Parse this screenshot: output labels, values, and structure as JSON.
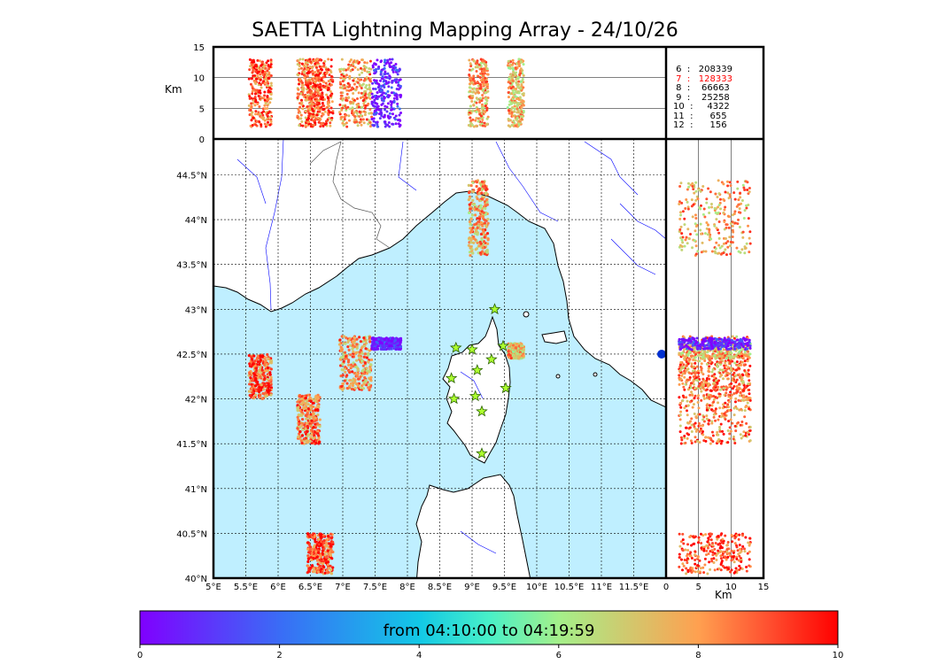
{
  "chart_data": {
    "type": "scatter",
    "title": "SAETTA Lightning Mapping Array - 24/10/26",
    "plan_view": {
      "x_ticks": [
        "5°E",
        "5.5°E",
        "6°E",
        "6.5°E",
        "7°E",
        "7.5°E",
        "8°E",
        "8.5°E",
        "9°E",
        "9.5°E",
        "10°E",
        "10.5°E",
        "11°E",
        "11.5°E"
      ],
      "y_ticks": [
        "40°N",
        "40.5°N",
        "41°N",
        "41.5°N",
        "42°N",
        "42.5°N",
        "43°N",
        "43.5°N",
        "44°N",
        "44.5°N"
      ],
      "xlim": [
        5.0,
        12.0
      ],
      "ylim": [
        40.0,
        44.9
      ],
      "grid": true,
      "stations": [
        {
          "lon": 9.35,
          "lat": 43.0
        },
        {
          "lon": 8.75,
          "lat": 42.57
        },
        {
          "lon": 9.0,
          "lat": 42.55
        },
        {
          "lon": 9.48,
          "lat": 42.59
        },
        {
          "lon": 9.3,
          "lat": 42.44
        },
        {
          "lon": 9.08,
          "lat": 42.32
        },
        {
          "lon": 8.68,
          "lat": 42.23
        },
        {
          "lon": 9.52,
          "lat": 42.12
        },
        {
          "lon": 8.72,
          "lat": 42.0
        },
        {
          "lon": 9.05,
          "lat": 42.03
        },
        {
          "lon": 9.15,
          "lat": 41.86
        },
        {
          "lon": 9.15,
          "lat": 41.39
        }
      ],
      "clusters": [
        {
          "lon": [
            8.95,
            9.25
          ],
          "lat": [
            43.6,
            44.45
          ],
          "time": 7.8
        },
        {
          "lon": [
            5.55,
            5.9
          ],
          "lat": [
            42.0,
            42.5
          ],
          "time": 8.8
        },
        {
          "lon": [
            6.95,
            7.45
          ],
          "lat": [
            42.1,
            42.7
          ],
          "time": 8.0
        },
        {
          "lon": [
            6.3,
            6.65
          ],
          "lat": [
            41.5,
            42.05
          ],
          "time": 8.5
        },
        {
          "lon": [
            6.45,
            6.85
          ],
          "lat": [
            40.05,
            40.5
          ],
          "time": 9.0
        },
        {
          "lon": [
            9.55,
            9.8
          ],
          "lat": [
            42.45,
            42.62
          ],
          "time": 7.5
        },
        {
          "lon": [
            7.45,
            7.9
          ],
          "lat": [
            42.55,
            42.68
          ],
          "time": 0.5
        }
      ]
    },
    "altitude_lon": {
      "ylabel": "Km",
      "y_ticks": [
        "0",
        "5",
        "10",
        "15"
      ],
      "ylim": [
        0,
        15
      ]
    },
    "altitude_lat": {
      "xlabel": "Km",
      "x_ticks": [
        "0",
        "5",
        "10",
        "15"
      ],
      "xlim": [
        0,
        15
      ]
    },
    "station_counts": [
      {
        "stations": "6",
        "count": "208339",
        "color": "#000000"
      },
      {
        "stations": "7",
        "count": "128333",
        "color": "#ff0000"
      },
      {
        "stations": "8",
        "count": "66663",
        "color": "#000000"
      },
      {
        "stations": "9",
        "count": "25258",
        "color": "#000000"
      },
      {
        "stations": "10",
        "count": "4322",
        "color": "#000000"
      },
      {
        "stations": "11",
        "count": "655",
        "color": "#000000"
      },
      {
        "stations": "12",
        "count": "156",
        "color": "#000000"
      }
    ],
    "colorbar": {
      "label": "from 04:10:00 to 04:19:59",
      "ticks": [
        "0",
        "2",
        "4",
        "6",
        "8",
        "10"
      ],
      "range": [
        0,
        10
      ],
      "colormap": "rainbow"
    }
  },
  "colors": {
    "sea": "#bfefff",
    "land": "#ffffff",
    "coast": "#000000",
    "rivers": "#0000ff",
    "borders": "#555555",
    "station_fill": "#adff2f",
    "station_stroke": "#2a6000"
  }
}
